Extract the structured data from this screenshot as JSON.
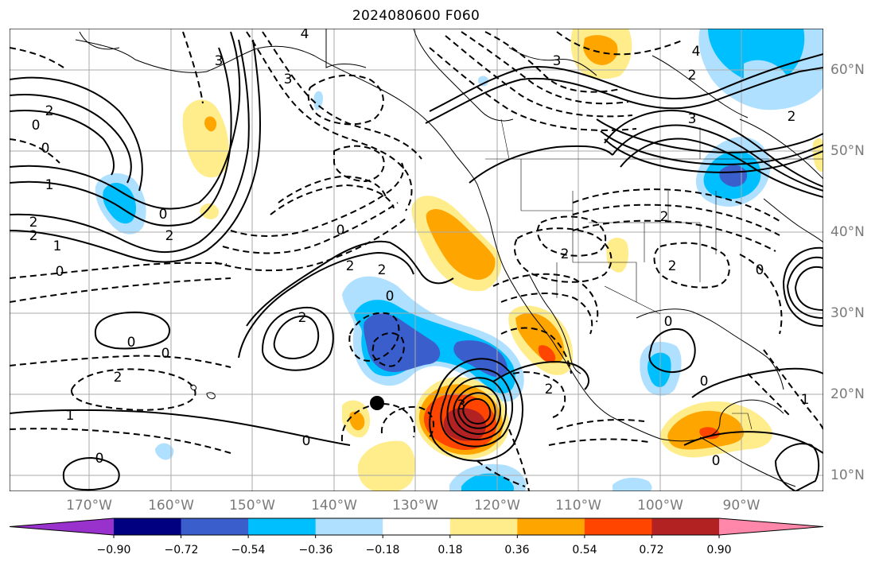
{
  "title": "2024080600 F060",
  "longitude_labels": [
    "170°W",
    "160°W",
    "150°W",
    "140°W",
    "130°W",
    "120°W",
    "110°W",
    "100°W",
    "90°W"
  ],
  "latitude_labels": [
    "60°N",
    "50°N",
    "40°N",
    "30°N",
    "20°N",
    "10°N"
  ],
  "colorbar": {
    "tick_labels": [
      "−0.90",
      "−0.72",
      "−0.54",
      "−0.36",
      "−0.18",
      "0.18",
      "0.36",
      "0.54",
      "0.72",
      "0.90"
    ],
    "colors": [
      "#9932cc",
      "#000080",
      "#3a5fcd",
      "#00bfff",
      "#b0e0ff",
      "#ffffff",
      "#ffec8b",
      "#ffa500",
      "#ff4500",
      "#b22222",
      "#ff88aa"
    ]
  },
  "contour_labels": [
    {
      "text": "2"
    },
    {
      "text": "0"
    },
    {
      "text": "0"
    },
    {
      "text": "1"
    },
    {
      "text": "2"
    },
    {
      "text": "2"
    },
    {
      "text": "1"
    },
    {
      "text": "0"
    },
    {
      "text": "0"
    },
    {
      "text": "0"
    },
    {
      "text": "0"
    },
    {
      "text": "2"
    },
    {
      "text": "1"
    },
    {
      "text": "0"
    },
    {
      "text": "3"
    },
    {
      "text": "3"
    },
    {
      "text": "2"
    },
    {
      "text": "2"
    },
    {
      "text": "2"
    },
    {
      "text": "0"
    },
    {
      "text": "0"
    },
    {
      "text": "3"
    },
    {
      "text": "0"
    },
    {
      "text": "2"
    },
    {
      "text": "2"
    },
    {
      "text": "2"
    },
    {
      "text": "2"
    },
    {
      "text": "0"
    },
    {
      "text": "0"
    },
    {
      "text": "2"
    },
    {
      "text": "4"
    },
    {
      "text": "3"
    },
    {
      "text": "4"
    },
    {
      "text": "3"
    },
    {
      "text": "2"
    },
    {
      "text": "2"
    },
    {
      "text": "0"
    },
    {
      "text": "0"
    },
    {
      "text": "1"
    }
  ],
  "marker": {
    "type": "black-dot"
  }
}
